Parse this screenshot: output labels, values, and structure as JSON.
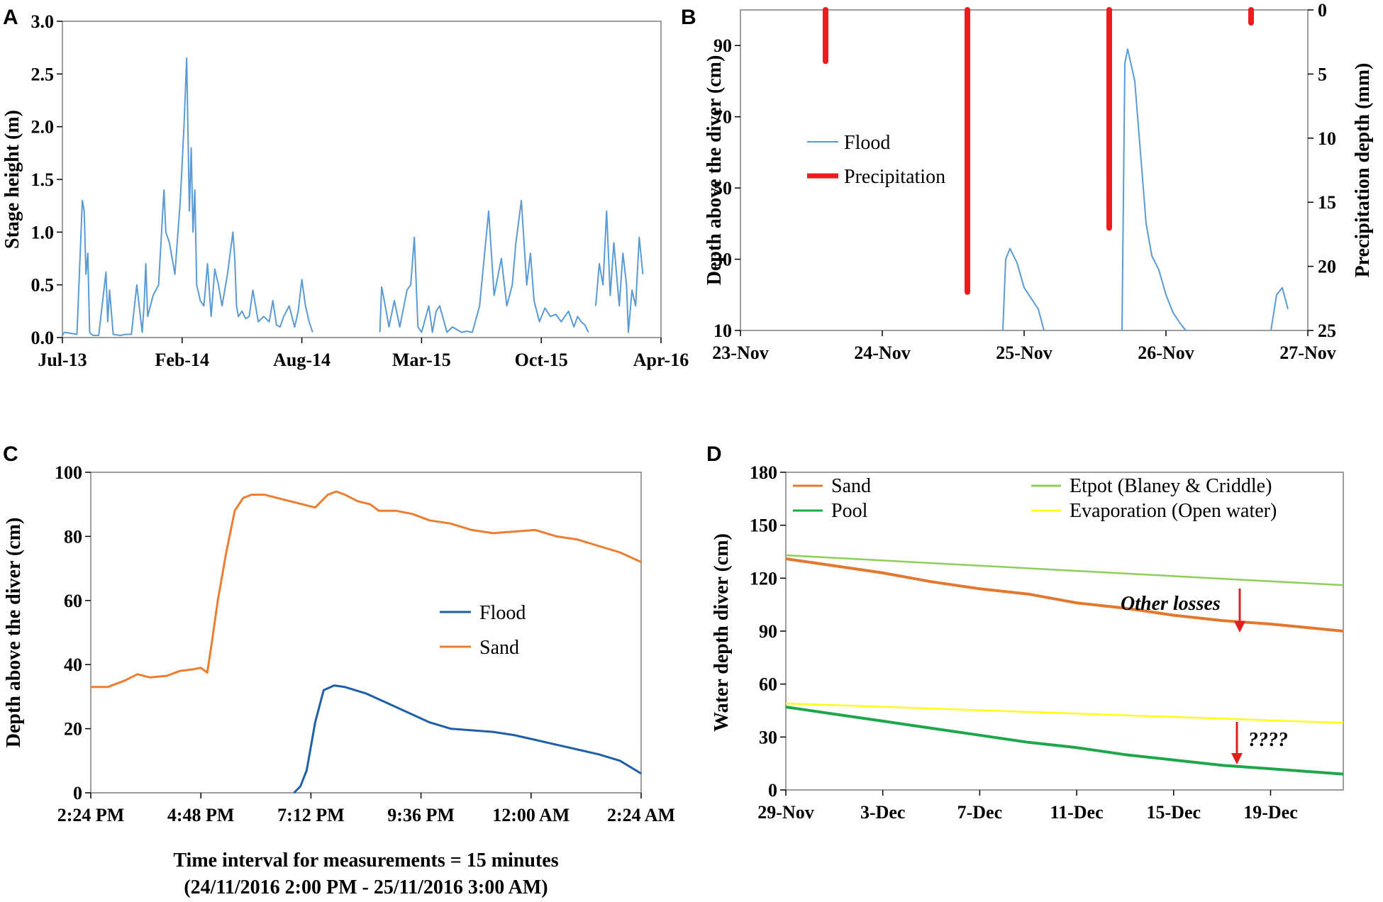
{
  "figure_panels": [
    "A",
    "B",
    "C",
    "D"
  ],
  "chart_data": [
    {
      "panel": "A",
      "type": "line",
      "title": "",
      "xlabel": "",
      "ylabel": "Stage height (m)",
      "x_tick_labels": [
        "Jul-13",
        "Feb-14",
        "Aug-14",
        "Mar-15",
        "Oct-15",
        "Apr-16"
      ],
      "xlim": [
        0,
        33
      ],
      "ylim": [
        0,
        3.0
      ],
      "y_ticks": [
        "0.0",
        "0.5",
        "1.0",
        "1.5",
        "2.0",
        "2.5",
        "3.0"
      ],
      "series": [
        {
          "name": "Stage height",
          "color": "#5b9bd5",
          "x": [
            0,
            0.1,
            0.8,
            1.1,
            1.2,
            1.3,
            1.4,
            1.5,
            1.6,
            1.7,
            2.0,
            2.4,
            2.5,
            2.6,
            2.8,
            3.2,
            3.5,
            3.8,
            4.1,
            4.4,
            4.5,
            4.6,
            4.7,
            5.0,
            5.3,
            5.6,
            5.7,
            5.9,
            6.2,
            6.5,
            6.7,
            6.85,
            7.0,
            7.1,
            7.2,
            7.3,
            7.4,
            7.6,
            7.8,
            8.0,
            8.2,
            8.4,
            8.6,
            8.8,
            9.1,
            9.4,
            9.5,
            9.6,
            9.7,
            9.9,
            10.1,
            10.3,
            10.5,
            10.8,
            11.1,
            11.4,
            11.6,
            11.8,
            12.0,
            12.2,
            12.5,
            12.8,
            13.0,
            13.2,
            13.4,
            13.6,
            13.8,
            15.0,
            17.5,
            17.6,
            17.8,
            18.0,
            18.3,
            18.6,
            19.0,
            19.2,
            19.4,
            19.6,
            19.8,
            20.2,
            20.4,
            20.6,
            20.8,
            21.2,
            21.5,
            21.7,
            22.0,
            22.3,
            22.6,
            23.0,
            23.5,
            23.8,
            24.2,
            24.5,
            24.8,
            25.0,
            25.3,
            25.6,
            25.8,
            26.0,
            26.3,
            26.6,
            26.9,
            27.2,
            27.5,
            27.9,
            28.2,
            28.4,
            28.6,
            28.8,
            29.0,
            29.2,
            29.4,
            29.6,
            29.8,
            30.0,
            30.2,
            30.4,
            30.7,
            30.9,
            31.1,
            31.2,
            31.4,
            31.6,
            31.8,
            32.0
          ],
          "y": [
            0.02,
            0.05,
            0.03,
            1.3,
            1.2,
            0.6,
            0.8,
            0.05,
            0.03,
            0.02,
            0.02,
            0.62,
            0.15,
            0.45,
            0.03,
            0.02,
            0.03,
            0.03,
            0.5,
            0.05,
            0.3,
            0.7,
            0.2,
            0.4,
            0.5,
            1.4,
            1.0,
            0.9,
            0.6,
            1.3,
            2.0,
            2.65,
            1.2,
            1.8,
            1.0,
            1.4,
            0.5,
            0.35,
            0.3,
            0.7,
            0.2,
            0.65,
            0.5,
            0.3,
            0.6,
            1.0,
            0.75,
            0.3,
            0.2,
            0.25,
            0.18,
            0.2,
            0.45,
            0.15,
            0.2,
            0.15,
            0.35,
            0.12,
            0.1,
            0.2,
            0.3,
            0.1,
            0.25,
            0.55,
            0.3,
            0.15,
            0.05,
            null,
            0.05,
            0.48,
            0.3,
            0.1,
            0.35,
            0.1,
            0.45,
            0.5,
            0.95,
            0.1,
            0.05,
            0.3,
            0.05,
            0.25,
            0.3,
            0.05,
            0.1,
            0.08,
            0.05,
            0.06,
            0.05,
            0.3,
            1.2,
            0.4,
            0.75,
            0.3,
            0.5,
            0.9,
            1.3,
            0.5,
            0.8,
            0.35,
            0.15,
            0.28,
            0.2,
            0.22,
            0.15,
            0.25,
            0.1,
            0.2,
            0.15,
            0.12,
            0.05,
            null,
            0.3,
            0.7,
            0.5,
            1.2,
            0.4,
            0.9,
            0.3,
            0.8,
            0.5,
            0.05,
            0.45,
            0.3,
            0.95,
            0.6
          ]
        }
      ]
    },
    {
      "panel": "B",
      "type": "line",
      "title": "",
      "xlabel": "",
      "ylabel": "Depth above the diver (cm)",
      "y2label": "Precipitation depth (mm)",
      "x_tick_labels": [
        "23-Nov",
        "24-Nov",
        "25-Nov",
        "26-Nov",
        "27-Nov"
      ],
      "xlim": [
        0,
        4
      ],
      "ylim": [
        10,
        100
      ],
      "y_ticks": [
        "10",
        "30",
        "50",
        "70",
        "90"
      ],
      "y2lim": [
        0,
        25
      ],
      "y2_ticks": [
        "0",
        "5",
        "10",
        "15",
        "20",
        "25"
      ],
      "y2_inverted": true,
      "legend": [
        "Flood",
        "Precipitation"
      ],
      "legend_position": "upper-left",
      "series": [
        {
          "name": "Flood",
          "color": "#5b9bd5",
          "x": [
            1.85,
            1.87,
            1.9,
            1.95,
            2.0,
            2.05,
            2.1,
            2.14,
            null,
            2.69,
            2.71,
            2.73,
            2.78,
            2.83,
            2.86,
            2.9,
            2.95,
            3.0,
            3.05,
            3.1,
            3.14,
            null,
            3.74,
            3.78,
            3.82,
            3.86
          ],
          "y": [
            10,
            30,
            33,
            29,
            22,
            19,
            16,
            10,
            null,
            10,
            85,
            89,
            80,
            55,
            40,
            31,
            27,
            20,
            15,
            12,
            10,
            null,
            10,
            20,
            22,
            16
          ]
        },
        {
          "name": "Precipitation",
          "color": "#ee1c1c",
          "axis": "secondary",
          "events": [
            {
              "x": 0.6,
              "depth_mm": 4
            },
            {
              "x": 1.6,
              "depth_mm": 22
            },
            {
              "x": 2.6,
              "depth_mm": 17
            },
            {
              "x": 3.6,
              "depth_mm": 1
            }
          ]
        }
      ]
    },
    {
      "panel": "C",
      "type": "line",
      "title": "",
      "xlabel": "Time interval for measurements = 15 minutes",
      "xlabel_line2": "(24/11/2016 2:00 PM - 25/11/2016 3:00 AM)",
      "ylabel": "Depth above the diver (cm)",
      "x_tick_labels": [
        "2:24 PM",
        "4:48 PM",
        "7:12 PM",
        "9:36 PM",
        "12:00 AM",
        "2:24 AM"
      ],
      "xlim": [
        0,
        13
      ],
      "ylim": [
        0,
        100
      ],
      "y_ticks": [
        "0",
        "20",
        "40",
        "60",
        "80",
        "100"
      ],
      "legend": [
        "Flood",
        "Sand"
      ],
      "legend_position": "center-right",
      "series": [
        {
          "name": "Flood",
          "color": "#1f5fa8",
          "x": [
            4.8,
            4.95,
            5.1,
            5.3,
            5.5,
            5.75,
            6.0,
            6.5,
            7.0,
            7.5,
            8.0,
            8.5,
            9.0,
            9.5,
            10.0,
            10.5,
            11.0,
            11.5,
            12.0,
            12.5,
            13.0
          ],
          "y": [
            0,
            2,
            7,
            22,
            32,
            33.5,
            33,
            31,
            28,
            25,
            22,
            20,
            19.5,
            19,
            18,
            16.5,
            15,
            13.5,
            12,
            10,
            6
          ]
        },
        {
          "name": "Sand",
          "color": "#ed7d31",
          "x": [
            0,
            0.4,
            0.8,
            1.1,
            1.4,
            1.8,
            2.1,
            2.4,
            2.6,
            2.75,
            2.85,
            3.0,
            3.2,
            3.4,
            3.6,
            3.8,
            4.1,
            4.4,
            4.7,
            5.0,
            5.3,
            5.6,
            5.8,
            6.0,
            6.3,
            6.6,
            6.8,
            7.2,
            7.6,
            8.0,
            8.5,
            9.0,
            9.5,
            10.0,
            10.5,
            11.0,
            11.5,
            12.0,
            12.5,
            13.0
          ],
          "y": [
            33,
            33,
            35,
            37,
            36,
            36.5,
            38,
            38.5,
            39,
            37.5,
            46,
            60,
            75,
            88,
            92,
            93,
            93,
            92,
            91,
            90,
            89,
            93,
            94,
            93,
            91,
            90,
            88,
            88,
            87,
            85,
            84,
            82,
            81,
            81.5,
            82,
            80,
            79,
            77,
            75,
            72
          ]
        }
      ]
    },
    {
      "panel": "D",
      "type": "line",
      "title": "",
      "xlabel": "",
      "ylabel": "Water depth diver (cm)",
      "x_tick_labels": [
        "29-Nov",
        "3-Dec",
        "7-Dec",
        "11-Dec",
        "15-Dec",
        "19-Dec"
      ],
      "xlim": [
        0,
        23
      ],
      "ylim": [
        0,
        180
      ],
      "y_ticks": [
        "0",
        "30",
        "60",
        "90",
        "120",
        "150",
        "180"
      ],
      "legend": [
        "Sand",
        "Etpot (Blaney & Criddle)",
        "Pool",
        "Evaporation (Open water)"
      ],
      "legend_position": "top",
      "annotations": [
        "Other losses",
        "????"
      ],
      "series": [
        {
          "name": "Sand",
          "color": "#e2772f",
          "x": [
            0,
            2,
            4,
            6,
            8,
            10,
            12,
            14,
            16,
            18,
            20,
            23
          ],
          "y": [
            131,
            127,
            123,
            118,
            114,
            111,
            106,
            103,
            99,
            96,
            94,
            90
          ]
        },
        {
          "name": "Etpot (Blaney & Criddle)",
          "color": "#8fce5a",
          "x": [
            0,
            23
          ],
          "y": [
            133,
            116
          ]
        },
        {
          "name": "Pool",
          "color": "#1fa64a",
          "x": [
            0,
            2,
            4,
            6,
            8,
            10,
            12,
            14,
            16,
            18,
            20,
            23
          ],
          "y": [
            47,
            43,
            39,
            35,
            31,
            27,
            24,
            20,
            17,
            14,
            12,
            9
          ]
        },
        {
          "name": "Evaporation (Open water)",
          "color": "#ffff1a",
          "x": [
            0,
            23
          ],
          "y": [
            49,
            38
          ]
        }
      ]
    }
  ]
}
